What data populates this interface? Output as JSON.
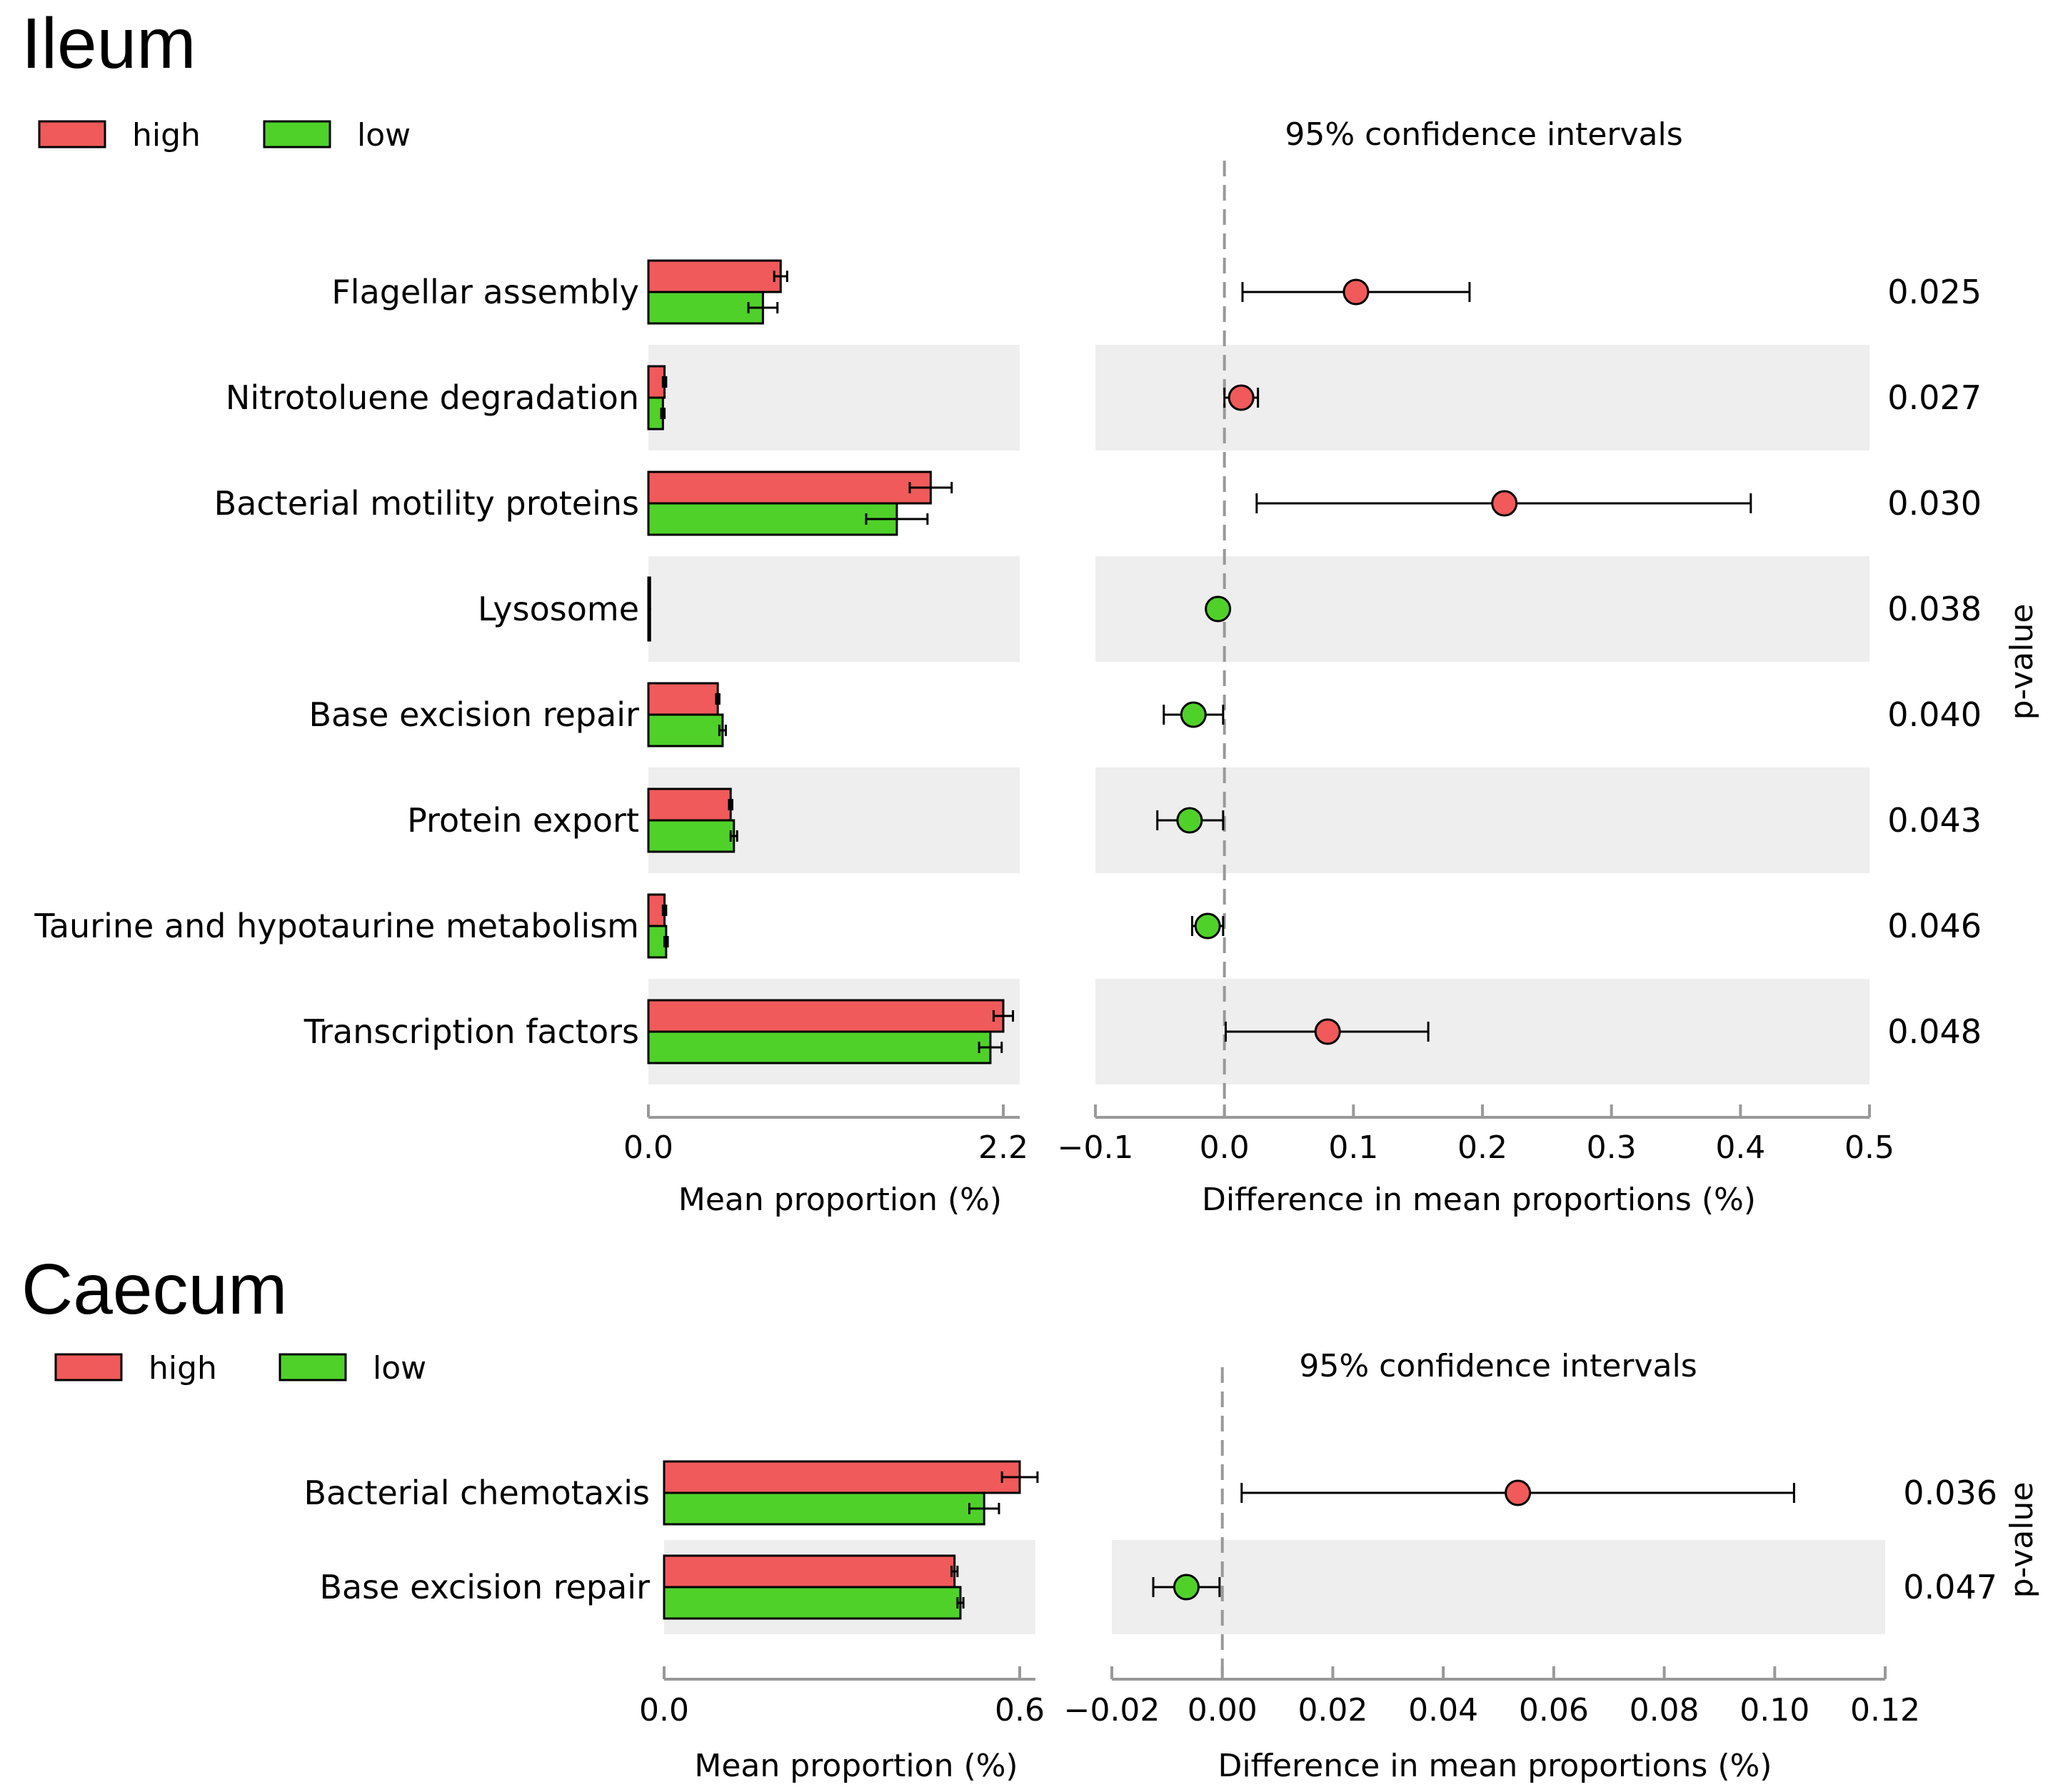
{
  "colors": {
    "high": "#f05a5a",
    "low": "#4fd12a",
    "stripe": "#eeeeee",
    "axis": "#999999",
    "zero_line": "#999999"
  },
  "chart_data": [
    {
      "type": "bar",
      "title": "Ileum",
      "legend": {
        "position": "top-left",
        "entries": [
          {
            "name": "high",
            "color": "#f05a5a"
          },
          {
            "name": "low",
            "color": "#4fd12a"
          }
        ]
      },
      "categories": [
        "Flagellar assembly",
        "Nitrotoluene degradation",
        "Bacterial motility proteins",
        "Lysosome",
        "Base excision repair",
        "Protein export",
        "Taurine and hypotaurine metabolism",
        "Transcription factors"
      ],
      "bar_axis": {
        "xlabel": "Mean proportion (%)",
        "ticks": [
          "0.0",
          "2.2"
        ],
        "xlim": [
          0,
          2.2
        ]
      },
      "series": [
        {
          "name": "high",
          "values": [
            0.82,
            0.1,
            1.75,
            0.01,
            0.43,
            0.51,
            0.1,
            2.2
          ],
          "errors": [
            0.04,
            0.01,
            0.13,
            0.0,
            0.01,
            0.01,
            0.01,
            0.06
          ]
        },
        {
          "name": "low",
          "values": [
            0.71,
            0.09,
            1.54,
            0.01,
            0.46,
            0.53,
            0.11,
            2.12
          ],
          "errors": [
            0.09,
            0.01,
            0.19,
            0.0,
            0.02,
            0.02,
            0.01,
            0.07
          ]
        }
      ],
      "ci": {
        "title": "95% confidence intervals",
        "xlabel": "Difference in mean proportions (%)",
        "xlim": [
          -0.1,
          0.5
        ],
        "ticks": [
          "−0.1",
          "0.0",
          "0.1",
          "0.2",
          "0.3",
          "0.4",
          "0.5"
        ],
        "differences": [
          0.102,
          0.013,
          0.217,
          -0.005,
          -0.024,
          -0.027,
          -0.013,
          0.08
        ],
        "lower": [
          0.014,
          0.0,
          0.025,
          -0.005,
          -0.047,
          -0.052,
          -0.025,
          0.001
        ],
        "upper": [
          0.19,
          0.026,
          0.408,
          -0.005,
          -0.001,
          -0.001,
          -0.001,
          0.158
        ],
        "favors": [
          "high",
          "high",
          "high",
          "low",
          "low",
          "low",
          "low",
          "high"
        ]
      },
      "p_values": {
        "label": "p-value",
        "values": [
          "0.025",
          "0.027",
          "0.030",
          "0.038",
          "0.040",
          "0.043",
          "0.046",
          "0.048"
        ]
      },
      "grid": false
    },
    {
      "type": "bar",
      "title": "Caecum",
      "legend": {
        "position": "top-left",
        "entries": [
          {
            "name": "high",
            "color": "#f05a5a"
          },
          {
            "name": "low",
            "color": "#4fd12a"
          }
        ]
      },
      "categories": [
        "Bacterial chemotaxis",
        "Base excision repair"
      ],
      "bar_axis": {
        "xlabel": "Mean proportion (%)",
        "ticks": [
          "0.0",
          "0.6"
        ],
        "xlim": [
          0,
          0.6
        ]
      },
      "series": [
        {
          "name": "high",
          "values": [
            0.6,
            0.49
          ],
          "errors": [
            0.03,
            0.005
          ]
        },
        {
          "name": "low",
          "values": [
            0.54,
            0.5
          ],
          "errors": [
            0.025,
            0.005
          ]
        }
      ],
      "ci": {
        "title": "95% confidence intervals",
        "xlabel": "Difference in mean proportions (%)",
        "xlim": [
          -0.02,
          0.12
        ],
        "ticks": [
          "−0.02",
          "0.00",
          "0.02",
          "0.04",
          "0.06",
          "0.08",
          "0.10",
          "0.12"
        ],
        "differences": [
          0.0535,
          -0.0065
        ],
        "lower": [
          0.0035,
          -0.0125
        ],
        "upper": [
          0.1035,
          -0.0005
        ],
        "favors": [
          "high",
          "low"
        ]
      },
      "p_values": {
        "label": "p-value",
        "values": [
          "0.036",
          "0.047"
        ]
      },
      "grid": false
    }
  ]
}
